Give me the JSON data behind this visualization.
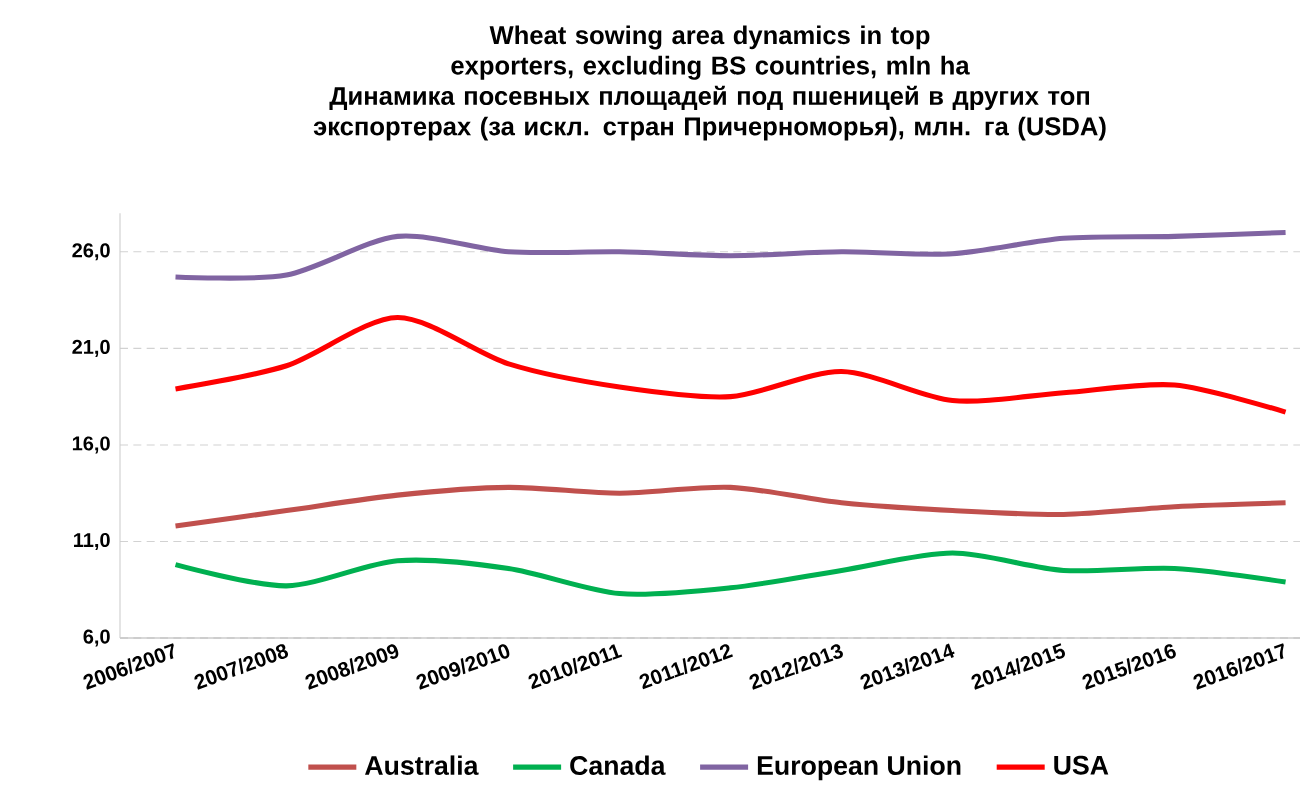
{
  "chart_data": {
    "type": "line",
    "title": "Wheat sowing area dynamics in top exporters, excluding BS countries, mln ha",
    "subtitle": "Динамика посевных площадей под пшеницей в других топ экспортерах (за искл. стран Причерноморья), млн. га (USDA)",
    "categories": [
      "2006/2007",
      "2007/2008",
      "2008/2009",
      "2009/2010",
      "2010/2011",
      "2011/2012",
      "2012/2013",
      "2013/2014",
      "2014/2015",
      "2015/2016",
      "2016/2017"
    ],
    "series": [
      {
        "name": "Australia",
        "color": "#c0504d",
        "values": [
          11.8,
          12.6,
          13.4,
          13.8,
          13.5,
          13.8,
          13.0,
          12.6,
          12.4,
          12.8,
          13.0
        ]
      },
      {
        "name": "Canada",
        "color": "#00b050",
        "values": [
          9.8,
          8.7,
          10.0,
          9.6,
          8.3,
          8.6,
          9.5,
          10.4,
          9.5,
          9.6,
          8.9
        ]
      },
      {
        "name": "European Union",
        "color": "#8064a2",
        "values": [
          24.7,
          24.8,
          26.8,
          26.0,
          26.0,
          25.8,
          26.0,
          25.9,
          26.7,
          26.8,
          27.0
        ]
      },
      {
        "name": "USA",
        "color": "#ff0000",
        "values": [
          18.9,
          20.1,
          22.6,
          20.2,
          19.0,
          18.5,
          19.8,
          18.3,
          18.7,
          19.1,
          17.7
        ]
      }
    ],
    "ylim": [
      6,
      28
    ],
    "yticks": [
      {
        "value": 6,
        "label": "6,0"
      },
      {
        "value": 11,
        "label": "11,0"
      },
      {
        "value": 16,
        "label": "16,0"
      },
      {
        "value": 21,
        "label": "21,0"
      },
      {
        "value": 26,
        "label": "26,0"
      }
    ],
    "grid": "y",
    "legend": "bottom",
    "marker": "none"
  }
}
